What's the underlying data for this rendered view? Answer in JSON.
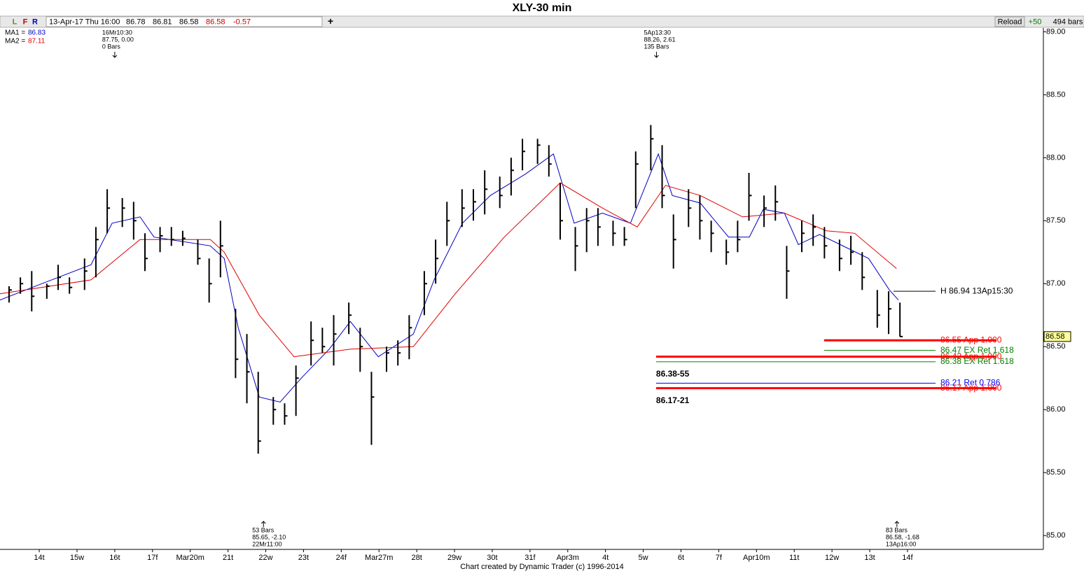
{
  "toolbar": {
    "buttons": [
      "L",
      "F",
      "R"
    ],
    "datetime": "13-Apr-17 Thu 16:00",
    "quote": [
      "86.78",
      "86.81",
      "86.58",
      "86.58",
      "-0.57"
    ],
    "add": "+",
    "reload": "Reload",
    "step": "+50",
    "bar_count": "494 bars"
  },
  "footer": "Chart created by Dynamic Trader  (c) 1996-2014",
  "chart_data": {
    "type": "ohlc",
    "title": "XLY-30 min",
    "color": "#000000",
    "xlim": [
      -1.04,
      26.6
    ],
    "ylim": [
      84.89,
      89.03
    ],
    "xticks": [
      {
        "value": 0,
        "label": "14t"
      },
      {
        "value": 1,
        "label": "15w"
      },
      {
        "value": 2,
        "label": "16t"
      },
      {
        "value": 3,
        "label": "17f"
      },
      {
        "value": 4,
        "label": "Mar20m"
      },
      {
        "value": 5,
        "label": "21t"
      },
      {
        "value": 6,
        "label": "22w"
      },
      {
        "value": 7,
        "label": "23t"
      },
      {
        "value": 8,
        "label": "24f"
      },
      {
        "value": 9,
        "label": "Mar27m"
      },
      {
        "value": 10,
        "label": "28t"
      },
      {
        "value": 11,
        "label": "29w"
      },
      {
        "value": 12,
        "label": "30t"
      },
      {
        "value": 13,
        "label": "31f"
      },
      {
        "value": 14,
        "label": "Apr3m"
      },
      {
        "value": 15,
        "label": "4t"
      },
      {
        "value": 16,
        "label": "5w"
      },
      {
        "value": 17,
        "label": "6t"
      },
      {
        "value": 18,
        "label": "7f"
      },
      {
        "value": 19,
        "label": "Apr10m"
      },
      {
        "value": 20,
        "label": "11t"
      },
      {
        "value": 21,
        "label": "12w"
      },
      {
        "value": 22,
        "label": "13t"
      },
      {
        "value": 23,
        "label": "14f"
      }
    ],
    "yticks": [
      {
        "value": 89,
        "label": "89.00"
      },
      {
        "value": 88.5,
        "label": "88.50"
      },
      {
        "value": 88,
        "label": "88.00"
      },
      {
        "value": 87.5,
        "label": "87.50"
      },
      {
        "value": 87,
        "label": "87.00"
      },
      {
        "value": 86.5,
        "label": "86.50"
      },
      {
        "value": 86,
        "label": "86.00"
      },
      {
        "value": 85.5,
        "label": "85.50"
      },
      {
        "value": 85,
        "label": "85.00"
      }
    ],
    "bars": {
      "x": [
        -0.8,
        -0.5,
        -0.2,
        0.2,
        0.5,
        0.8,
        1.2,
        1.5,
        1.8,
        2.2,
        2.5,
        2.8,
        3.2,
        3.5,
        3.8,
        4.2,
        4.5,
        4.8,
        5.2,
        5.5,
        5.8,
        6.2,
        6.5,
        6.8,
        7.2,
        7.5,
        7.8,
        8.2,
        8.5,
        8.8,
        9.2,
        9.5,
        9.8,
        10.2,
        10.5,
        10.8,
        11.2,
        11.5,
        11.8,
        12.2,
        12.5,
        12.8,
        13.2,
        13.5,
        13.8,
        14.2,
        14.5,
        14.8,
        15.2,
        15.5,
        15.8,
        16.2,
        16.5,
        16.8,
        17.2,
        17.5,
        17.8,
        18.2,
        18.5,
        18.8,
        19.2,
        19.5,
        19.8,
        20.2,
        20.5,
        20.8,
        21.2,
        21.5,
        21.8,
        22.2,
        22.5,
        22.8
      ],
      "high": [
        86.98,
        87.05,
        87.1,
        87.0,
        87.15,
        87.05,
        87.2,
        87.45,
        87.75,
        87.68,
        87.65,
        87.4,
        87.45,
        87.45,
        87.42,
        87.35,
        87.2,
        87.5,
        86.8,
        86.6,
        86.3,
        86.1,
        86.05,
        86.35,
        86.7,
        86.65,
        86.75,
        86.85,
        86.65,
        86.3,
        86.5,
        86.55,
        86.75,
        87.1,
        87.35,
        87.65,
        87.75,
        87.75,
        87.9,
        87.85,
        88.0,
        88.15,
        88.15,
        88.1,
        87.8,
        87.45,
        87.6,
        87.6,
        87.5,
        87.45,
        88.05,
        88.26,
        88.1,
        87.55,
        87.75,
        87.7,
        87.5,
        87.35,
        87.5,
        87.88,
        87.7,
        87.78,
        87.3,
        87.5,
        87.55,
        87.45,
        87.35,
        87.38,
        87.25,
        86.95,
        86.94,
        86.85
      ],
      "low": [
        86.85,
        86.92,
        86.78,
        86.88,
        86.95,
        86.92,
        86.95,
        87.05,
        87.4,
        87.45,
        87.35,
        87.1,
        87.25,
        87.3,
        87.3,
        87.15,
        86.85,
        87.05,
        86.25,
        86.05,
        85.65,
        85.88,
        85.88,
        85.95,
        86.35,
        86.45,
        86.35,
        86.6,
        86.3,
        85.72,
        86.3,
        86.35,
        86.4,
        86.75,
        87.0,
        87.3,
        87.45,
        87.5,
        87.55,
        87.6,
        87.7,
        87.9,
        87.95,
        87.85,
        87.35,
        87.1,
        87.25,
        87.3,
        87.3,
        87.3,
        87.6,
        87.9,
        87.6,
        87.12,
        87.45,
        87.35,
        87.25,
        87.15,
        87.25,
        87.5,
        87.45,
        87.5,
        86.88,
        87.25,
        87.3,
        87.2,
        87.1,
        87.15,
        86.95,
        86.65,
        86.6,
        86.58
      ],
      "close": [
        86.95,
        87.0,
        86.9,
        86.98,
        87.05,
        86.97,
        87.1,
        87.35,
        87.6,
        87.6,
        87.5,
        87.2,
        87.38,
        87.35,
        87.36,
        87.2,
        87.0,
        87.3,
        86.4,
        86.3,
        85.75,
        86.0,
        85.95,
        86.25,
        86.55,
        86.5,
        86.6,
        86.75,
        86.5,
        86.1,
        86.45,
        86.45,
        86.65,
        87.0,
        87.2,
        87.5,
        87.6,
        87.65,
        87.75,
        87.7,
        87.9,
        88.05,
        88.1,
        87.95,
        87.5,
        87.3,
        87.5,
        87.45,
        87.4,
        87.35,
        87.95,
        88.15,
        87.7,
        87.35,
        87.6,
        87.5,
        87.4,
        87.25,
        87.35,
        87.7,
        87.6,
        87.65,
        87.1,
        87.4,
        87.45,
        87.3,
        87.2,
        87.25,
        87.05,
        86.75,
        86.8,
        86.58
      ]
    },
    "moving_averages": [
      {
        "name": "MA1 =",
        "value": 86.83,
        "color": "#0000c0",
        "x": [
          -1.04,
          0.07,
          1.37,
          1.93,
          2.67,
          3.04,
          4.53,
          4.9,
          5.27,
          5.83,
          6.38,
          6.94,
          7.68,
          8.24,
          8.98,
          9.91,
          10.46,
          11.21,
          11.95,
          12.88,
          13.62,
          14.17,
          14.92,
          15.66,
          16.4,
          16.77,
          17.51,
          18.26,
          18.81,
          19.18,
          19.74,
          20.11,
          20.67,
          21.22,
          21.97,
          22.52,
          22.76
        ],
        "values": [
          86.87,
          87.0,
          87.15,
          87.48,
          87.53,
          87.37,
          87.3,
          87.2,
          86.65,
          86.1,
          86.06,
          86.25,
          86.48,
          86.7,
          86.42,
          86.6,
          87.03,
          87.48,
          87.7,
          87.87,
          88.03,
          87.48,
          87.56,
          87.48,
          88.03,
          87.7,
          87.64,
          87.37,
          87.37,
          87.59,
          87.56,
          87.31,
          87.39,
          87.31,
          87.2,
          86.95,
          86.87
        ]
      },
      {
        "name": "MA2 =",
        "value": 87.11,
        "color": "#e00000",
        "x": [
          -1.04,
          1.37,
          2.67,
          4.53,
          4.9,
          5.83,
          6.75,
          8.24,
          9.91,
          11.02,
          12.32,
          13.8,
          14.92,
          15.84,
          16.59,
          17.51,
          18.63,
          19.74,
          20.85,
          21.6,
          22.71
        ],
        "values": [
          86.92,
          87.03,
          87.35,
          87.35,
          87.25,
          86.75,
          86.42,
          86.48,
          86.5,
          86.92,
          87.37,
          87.8,
          87.6,
          87.45,
          87.78,
          87.7,
          87.53,
          87.56,
          87.42,
          87.4,
          87.12
        ]
      }
    ],
    "levels": [
      {
        "value": 86.94,
        "label": "H 86.94 13Ap15:30",
        "color": "#000000",
        "from": 22.63,
        "line_width": 1
      },
      {
        "value": 86.55,
        "label": "86.55 App 1.000",
        "color": "#ff0000",
        "from": 20.79,
        "line_width": 3
      },
      {
        "value": 86.47,
        "label": "86.47 EX Ret 1.618",
        "color": "#008000",
        "from": 20.79,
        "line_width": 1
      },
      {
        "value": 86.42,
        "label": "86.42 App 1.000",
        "color": "#ff0000",
        "from": 16.34,
        "line_width": 3
      },
      {
        "value": 86.38,
        "label": "86.38 EX Ret 1.618",
        "color": "#008000",
        "from": 16.34,
        "line_width": 1
      },
      {
        "value": 86.21,
        "label": "86.21 Ret 0.786",
        "color": "#0000ff",
        "from": 16.34,
        "line_width": 1
      },
      {
        "value": 86.17,
        "label": "86.17 App 1.000",
        "color": "#ff0000",
        "from": 16.34,
        "line_width": 3
      }
    ],
    "zone_labels": [
      "86.38-55",
      "86.17-21"
    ],
    "last": 86.58,
    "annotations": [
      {
        "x": 2.0,
        "position": "top",
        "lines": [
          "16Mr10:30",
          "87.75, 0.00",
          "0 Bars"
        ]
      },
      {
        "x": 16.35,
        "position": "top",
        "lines": [
          "5Ap13:30",
          "88.26, 2.61",
          "135 Bars"
        ]
      },
      {
        "x": 5.94,
        "position": "bottom",
        "lines": [
          "53 Bars",
          "85.65, -2.10",
          "22Mr11:00"
        ]
      },
      {
        "x": 22.72,
        "position": "bottom",
        "lines": [
          "83 Bars",
          "86.58, -1.68",
          "13Ap16:00"
        ]
      }
    ]
  }
}
